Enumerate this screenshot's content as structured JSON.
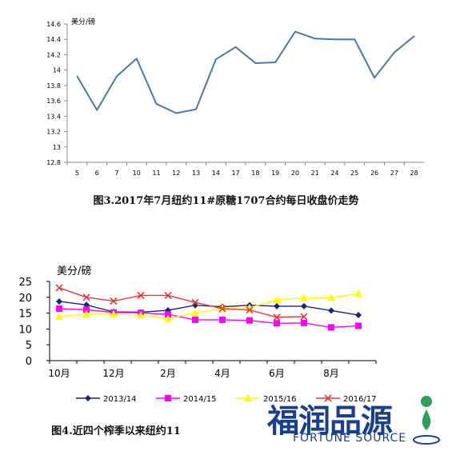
{
  "chart_data": [
    {
      "type": "line",
      "ylabel": "美分/磅",
      "categories": [
        "5",
        "6",
        "7",
        "10",
        "11",
        "12",
        "13",
        "14",
        "17",
        "18",
        "19",
        "20",
        "21",
        "24",
        "25",
        "26",
        "27",
        "28"
      ],
      "series": [
        {
          "values": [
            13.92,
            13.48,
            13.92,
            14.15,
            13.56,
            13.44,
            13.49,
            14.14,
            14.3,
            14.09,
            14.1,
            14.5,
            14.41,
            14.4,
            14.4,
            13.9,
            14.23,
            14.44
          ]
        }
      ],
      "ylim": [
        12.8,
        14.6
      ],
      "yticks": [
        "12.8",
        "13",
        "13.2",
        "13.4",
        "13.6",
        "13.8",
        "14",
        "14.2",
        "14.4",
        "14.6"
      ],
      "grid": false,
      "color": "#4a78a8"
    },
    {
      "type": "line",
      "ylabel": "美分/磅",
      "x_tick_labels": [
        "10月",
        "12月",
        "2月",
        "4月",
        "6月",
        "8月"
      ],
      "ylim": [
        0,
        25
      ],
      "yticks": [
        "0",
        "5",
        "10",
        "15",
        "20",
        "25"
      ],
      "grid": false,
      "legend": "bottom",
      "series": [
        {
          "name": "2013/14",
          "color": "#1a237e",
          "marker": "diamond",
          "values": [
            18.7,
            17.6,
            15.4,
            15.3,
            15.9,
            17.5,
            17,
            17.5,
            17.2,
            17.2,
            15.8,
            14.4
          ]
        },
        {
          "name": "2014/15",
          "color": "#ff00ff",
          "marker": "square",
          "values": [
            16.4,
            16.1,
            15.2,
            15.1,
            14.6,
            12.9,
            12.9,
            12.7,
            11.8,
            11.9,
            10.5,
            11
          ]
        },
        {
          "name": "2015/16",
          "color": "#ffff00",
          "marker": "triangle",
          "values": [
            13.9,
            14.7,
            14.7,
            14.4,
            13.2,
            15.1,
            16.6,
            16.7,
            19.2,
            19.8,
            19.9,
            21.1
          ]
        },
        {
          "name": "2016/17",
          "color": "#e53935",
          "marker": "x",
          "values": [
            23,
            20,
            18.8,
            20.6,
            20.6,
            18.4,
            16.4,
            16,
            13.7,
            13.9
          ]
        }
      ]
    }
  ],
  "captions": {
    "chart1": "图3.2017年7月纽约11#原糖1707合约每日收盘价走势",
    "chart2": "图4.近四个榨季以来纽约11"
  },
  "watermark": {
    "chinese": "福润品源",
    "english": "FORTUNE SOURCE",
    "color": "#1a3f8f"
  }
}
